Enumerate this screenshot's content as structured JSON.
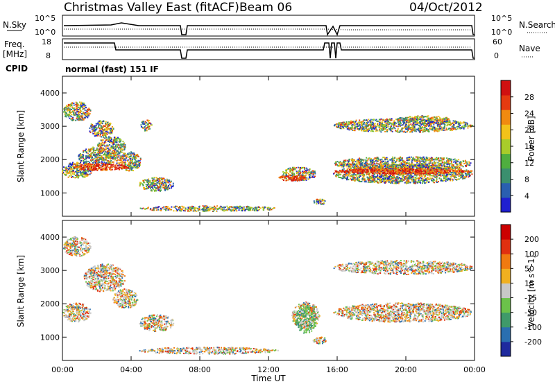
{
  "header": {
    "title": "Christmas Valley East (fitACF)",
    "beam": "Beam 06",
    "date": "04/Oct/2012"
  },
  "nsky_panel": {
    "left_label": "N.Sky",
    "right_label": "N.Search",
    "left_ticks": [
      "10^5",
      "10^0"
    ],
    "right_ticks": [
      "10^5",
      "10^0"
    ]
  },
  "freq_panel": {
    "left_label_line1": "Freq.",
    "left_label_line2": "[MHz]",
    "right_label": "Nave",
    "left_ticks": [
      "18",
      "8"
    ],
    "right_ticks": [
      "60",
      "0"
    ]
  },
  "cpid": {
    "label": "CPID",
    "value": "normal (fast) 151 IF"
  },
  "chart_data": [
    {
      "type": "heatmap",
      "name": "power",
      "ylabel": "Slant Range [km]",
      "yticks": [
        "1000",
        "2000",
        "3000",
        "4000"
      ],
      "ylim": [
        300,
        4500
      ],
      "colorbar_label": "Power [dB]",
      "colorbar_ticks": [
        "4",
        "8",
        "12",
        "16",
        "20",
        "24",
        "28"
      ],
      "colors": [
        "#1f1fd0",
        "#2a5fb0",
        "#3b8f6e",
        "#4fae3f",
        "#a8cc2a",
        "#f2c21a",
        "#f08a10",
        "#e53a10",
        "#d01010"
      ]
    },
    {
      "type": "heatmap",
      "name": "velocity",
      "ylabel": "Slant Range [km]",
      "yticks": [
        "1000",
        "2000",
        "3000",
        "4000"
      ],
      "ylim": [
        300,
        4500
      ],
      "colorbar_label": "Velocity [m s^-1]",
      "colorbar_ticks": [
        "200",
        "100",
        "50",
        "15",
        "-15",
        "-50",
        "-100",
        "-200"
      ],
      "colors": [
        "#1f2a9e",
        "#2a6fb0",
        "#3f9a6a",
        "#6bc24a",
        "#c8c8c8",
        "#f0b020",
        "#f07a10",
        "#e03010",
        "#cc0000"
      ]
    }
  ],
  "xaxis": {
    "label": "Time UT",
    "ticks": [
      "00:00",
      "04:00",
      "08:00",
      "12:00",
      "16:00",
      "20:00",
      "00:00"
    ]
  }
}
